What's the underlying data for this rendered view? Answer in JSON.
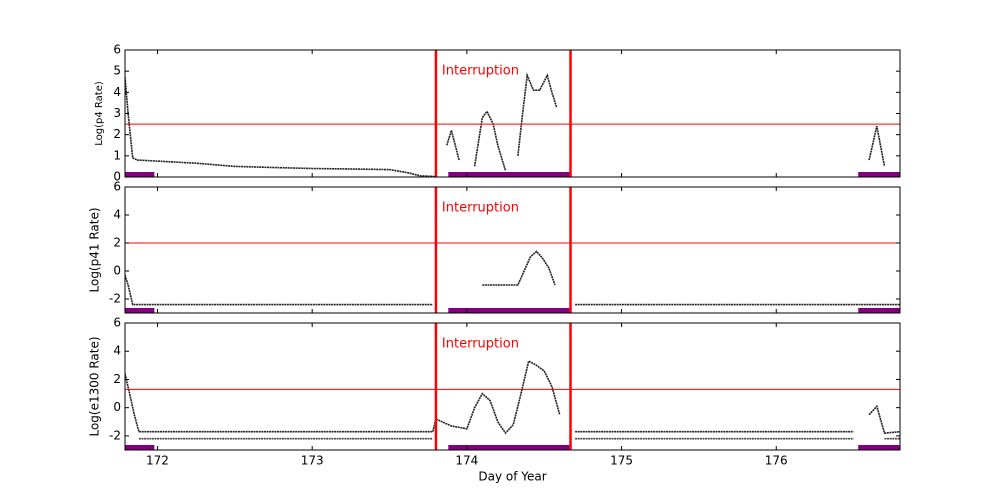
{
  "chart_data": [
    {
      "type": "line",
      "ylabel": "Log(p4 Rate)",
      "annotation": "Interruption",
      "xlim": [
        171.79,
        176.8
      ],
      "xticks": [
        172,
        173,
        174,
        175,
        176
      ],
      "ylim": [
        0,
        6
      ],
      "yticks": [
        0,
        1,
        2,
        3,
        4,
        5,
        6
      ],
      "threshold": 2.5,
      "interruption": [
        173.8,
        174.67
      ],
      "bars": [
        [
          171.79,
          171.98
        ],
        [
          173.88,
          174.67
        ],
        [
          176.53,
          176.8
        ]
      ],
      "series": [
        {
          "color": "#222222",
          "x": [
            171.79,
            171.81,
            171.84,
            171.87,
            172.0,
            172.25,
            172.5,
            172.75,
            173.0,
            173.25,
            173.5,
            173.62,
            173.7,
            173.8,
            173.83,
            173.87,
            173.9,
            173.95,
            174.0,
            174.05,
            174.1,
            174.13,
            174.17,
            174.2,
            174.25,
            174.3,
            174.33,
            174.36,
            174.39,
            174.43,
            174.47,
            174.52,
            174.55,
            174.58,
            176.55,
            176.6,
            176.65,
            176.7
          ],
          "values": [
            4.7,
            3.0,
            0.9,
            0.8,
            0.75,
            0.65,
            0.5,
            0.45,
            0.4,
            0.38,
            0.35,
            0.2,
            0.05,
            0.02,
            null,
            1.5,
            2.2,
            0.8,
            null,
            0.5,
            2.8,
            3.1,
            2.5,
            1.5,
            0.3,
            null,
            1.0,
            3.0,
            4.8,
            4.1,
            4.1,
            4.8,
            4.0,
            3.3,
            null,
            0.8,
            2.4,
            0.5
          ]
        }
      ]
    },
    {
      "type": "line",
      "ylabel": "Log(p41 Rate)",
      "annotation": "Interruption",
      "xlim": [
        171.79,
        176.8
      ],
      "xticks": [
        172,
        173,
        174,
        175,
        176
      ],
      "ylim": [
        -3,
        6
      ],
      "yticks": [
        -2,
        0,
        2,
        4,
        6
      ],
      "threshold": 2,
      "interruption": [
        173.8,
        174.67
      ],
      "bars": [
        [
          171.79,
          171.98
        ],
        [
          173.88,
          174.67
        ],
        [
          176.53,
          176.8
        ]
      ],
      "series": [
        {
          "color": "#222222",
          "x": [
            171.79,
            171.81,
            171.84,
            171.9,
            172.5,
            173.0,
            173.5,
            173.78,
            173.8,
            174.1,
            174.2,
            174.3,
            174.33,
            174.37,
            174.41,
            174.45,
            174.49,
            174.53,
            174.57,
            174.6,
            174.7,
            175.0,
            175.5,
            176.0,
            176.5,
            176.8
          ],
          "values": [
            -0.3,
            -1.0,
            -2.4,
            -2.4,
            -2.4,
            -2.4,
            -2.4,
            -2.4,
            null,
            -1.0,
            -1.0,
            -1.0,
            -1.0,
            0.0,
            1.0,
            1.4,
            0.9,
            0.2,
            -1.0,
            null,
            -2.4,
            -2.4,
            -2.4,
            -2.4,
            -2.4,
            -2.4
          ]
        }
      ]
    },
    {
      "type": "line",
      "ylabel": "Log(e1300 Rate)",
      "xlabel": "Day of Year",
      "annotation": "Interruption",
      "xlim": [
        171.79,
        176.8
      ],
      "xticks": [
        172,
        173,
        174,
        175,
        176
      ],
      "ylim": [
        -3,
        6
      ],
      "yticks": [
        -2,
        0,
        2,
        4,
        6
      ],
      "threshold": 1.3,
      "interruption": [
        173.8,
        174.67
      ],
      "bars": [
        [
          171.79,
          171.98
        ],
        [
          173.88,
          174.67
        ],
        [
          176.53,
          176.8
        ]
      ],
      "series": [
        {
          "color": "#222222",
          "x": [
            171.79,
            171.82,
            171.85,
            171.88,
            172.5,
            173.0,
            173.5,
            173.78,
            173.8,
            173.9,
            174.0,
            174.05,
            174.1,
            174.15,
            174.2,
            174.25,
            174.3,
            174.35,
            174.4,
            174.45,
            174.5,
            174.55,
            174.6,
            174.65,
            174.7,
            175.5,
            176.5,
            176.55,
            176.6,
            176.65,
            176.7,
            176.8
          ],
          "values": [
            2.4,
            1.0,
            -0.5,
            -1.7,
            -1.7,
            -1.7,
            -1.7,
            -1.7,
            -0.8,
            -1.3,
            -1.5,
            0.0,
            1.0,
            0.5,
            -1.0,
            -1.8,
            -1.2,
            1.0,
            3.3,
            3.0,
            2.6,
            1.5,
            -0.5,
            null,
            -1.7,
            -1.7,
            -1.7,
            null,
            -0.5,
            0.1,
            -1.8,
            -1.7
          ]
        },
        {
          "color": "#444444",
          "x": [
            171.88,
            173.78,
            173.8,
            174.7,
            176.5,
            176.55,
            176.7,
            176.8
          ],
          "values": [
            -2.2,
            -2.2,
            null,
            -2.2,
            -2.2,
            null,
            -2.2,
            -2.2
          ]
        }
      ]
    }
  ]
}
